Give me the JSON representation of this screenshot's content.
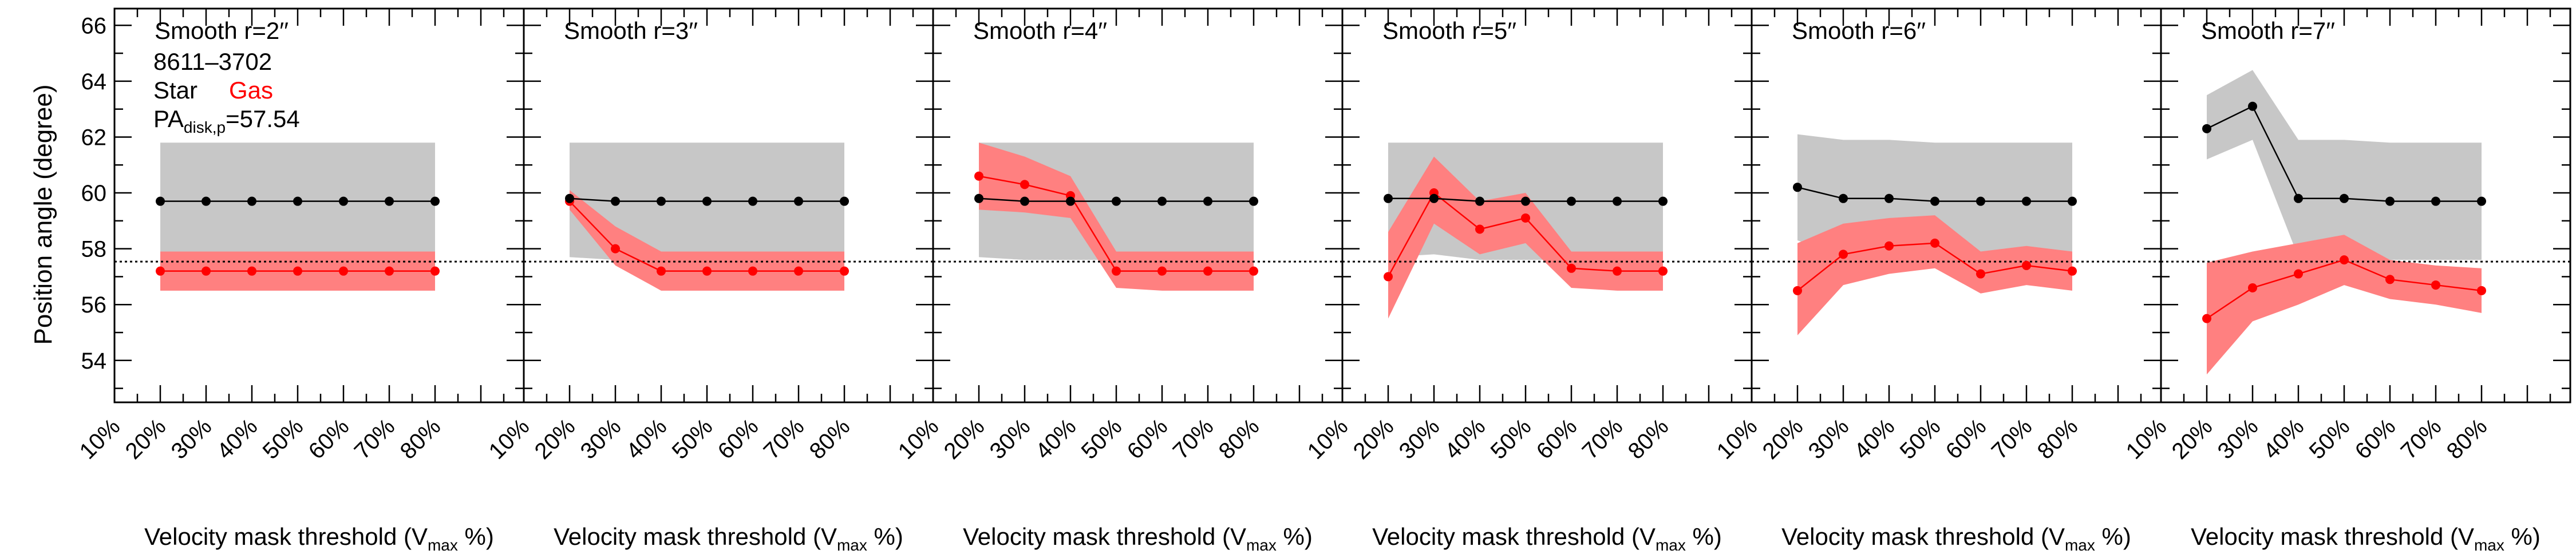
{
  "figure": {
    "ylabel": "Position angle (degree)",
    "xlabel_main": "Velocity mask threshold (V",
    "xlabel_sub": "max",
    "xlabel_tail": " %)",
    "pa_disk": 57.54
  },
  "legend": {
    "galaxy": "8611–3702",
    "star_label": "Star",
    "gas_label": "Gas",
    "pa_main": "PA",
    "pa_sub": "disk,p",
    "pa_value": "=57.54"
  },
  "colors": {
    "star": "#000000",
    "star_band": "#c7c7c7",
    "gas": "#ff0000",
    "gas_band": "#ff8080"
  },
  "chart_data": [
    {
      "type": "line",
      "title": "Smooth r=2′′",
      "x_categories": [
        "10%",
        "20%",
        "30%",
        "40%",
        "50%",
        "60%",
        "70%",
        "80%"
      ],
      "x": [
        "20%",
        "30%",
        "40%",
        "50%",
        "60%",
        "70%",
        "80%"
      ],
      "ylabel": "Position angle (degree)",
      "ylim": [
        52.5,
        66.6
      ],
      "yticks": [
        54,
        56,
        58,
        60,
        62,
        64,
        66
      ],
      "series": [
        {
          "name": "Star",
          "values": [
            59.7,
            59.7,
            59.7,
            59.7,
            59.7,
            59.7,
            59.7
          ],
          "lower": [
            57.6,
            57.6,
            57.6,
            57.6,
            57.6,
            57.6,
            57.6
          ],
          "upper": [
            61.8,
            61.8,
            61.8,
            61.8,
            61.8,
            61.8,
            61.8
          ]
        },
        {
          "name": "Gas",
          "values": [
            57.2,
            57.2,
            57.2,
            57.2,
            57.2,
            57.2,
            57.2
          ],
          "lower": [
            56.5,
            56.5,
            56.5,
            56.5,
            56.5,
            56.5,
            56.5
          ],
          "upper": [
            57.9,
            57.9,
            57.9,
            57.9,
            57.9,
            57.9,
            57.9
          ]
        }
      ],
      "reference_line": 57.54
    },
    {
      "type": "line",
      "title": "Smooth r=3′′",
      "x_categories": [
        "10%",
        "20%",
        "30%",
        "40%",
        "50%",
        "60%",
        "70%",
        "80%"
      ],
      "x": [
        "20%",
        "30%",
        "40%",
        "50%",
        "60%",
        "70%",
        "80%"
      ],
      "ylim": [
        52.5,
        66.6
      ],
      "series": [
        {
          "name": "Star",
          "values": [
            59.8,
            59.7,
            59.7,
            59.7,
            59.7,
            59.7,
            59.7
          ],
          "lower": [
            57.7,
            57.6,
            57.6,
            57.6,
            57.6,
            57.6,
            57.6
          ],
          "upper": [
            61.8,
            61.8,
            61.8,
            61.8,
            61.8,
            61.8,
            61.8
          ]
        },
        {
          "name": "Gas",
          "values": [
            59.7,
            58.0,
            57.2,
            57.2,
            57.2,
            57.2,
            57.2
          ],
          "lower": [
            59.4,
            57.4,
            56.5,
            56.5,
            56.5,
            56.5,
            56.5
          ],
          "upper": [
            60.1,
            58.8,
            57.9,
            57.9,
            57.9,
            57.9,
            57.9
          ]
        }
      ],
      "reference_line": 57.54
    },
    {
      "type": "line",
      "title": "Smooth r=4′′",
      "x_categories": [
        "10%",
        "20%",
        "30%",
        "40%",
        "50%",
        "60%",
        "70%",
        "80%"
      ],
      "x": [
        "20%",
        "30%",
        "40%",
        "50%",
        "60%",
        "70%",
        "80%"
      ],
      "ylim": [
        52.5,
        66.6
      ],
      "series": [
        {
          "name": "Star",
          "values": [
            59.8,
            59.7,
            59.7,
            59.7,
            59.7,
            59.7,
            59.7
          ],
          "lower": [
            57.7,
            57.6,
            57.6,
            57.6,
            57.6,
            57.6,
            57.6
          ],
          "upper": [
            61.8,
            61.8,
            61.8,
            61.8,
            61.8,
            61.8,
            61.8
          ]
        },
        {
          "name": "Gas",
          "values": [
            60.6,
            60.3,
            59.9,
            57.2,
            57.2,
            57.2,
            57.2
          ],
          "lower": [
            59.4,
            59.3,
            59.1,
            56.6,
            56.5,
            56.5,
            56.5
          ],
          "upper": [
            61.8,
            61.3,
            60.6,
            57.9,
            57.9,
            57.9,
            57.9
          ]
        }
      ],
      "reference_line": 57.54
    },
    {
      "type": "line",
      "title": "Smooth r=5′′",
      "x_categories": [
        "10%",
        "20%",
        "30%",
        "40%",
        "50%",
        "60%",
        "70%",
        "80%"
      ],
      "x": [
        "20%",
        "30%",
        "40%",
        "50%",
        "60%",
        "70%",
        "80%"
      ],
      "ylim": [
        52.5,
        66.6
      ],
      "series": [
        {
          "name": "Star",
          "values": [
            59.8,
            59.8,
            59.7,
            59.7,
            59.7,
            59.7,
            59.7
          ],
          "lower": [
            57.7,
            57.8,
            57.6,
            57.6,
            57.6,
            57.6,
            57.6
          ],
          "upper": [
            61.8,
            61.8,
            61.8,
            61.8,
            61.8,
            61.8,
            61.8
          ]
        },
        {
          "name": "Gas",
          "values": [
            57.0,
            60.0,
            58.7,
            59.1,
            57.3,
            57.2,
            57.2
          ],
          "lower": [
            55.5,
            58.9,
            57.8,
            58.2,
            56.6,
            56.5,
            56.5
          ],
          "upper": [
            58.6,
            61.3,
            59.7,
            60.0,
            57.9,
            57.9,
            57.9
          ]
        }
      ],
      "reference_line": 57.54
    },
    {
      "type": "line",
      "title": "Smooth r=6′′",
      "x_categories": [
        "10%",
        "20%",
        "30%",
        "40%",
        "50%",
        "60%",
        "70%",
        "80%"
      ],
      "x": [
        "20%",
        "30%",
        "40%",
        "50%",
        "60%",
        "70%",
        "80%"
      ],
      "ylim": [
        52.5,
        66.6
      ],
      "series": [
        {
          "name": "Star",
          "values": [
            60.2,
            59.8,
            59.8,
            59.7,
            59.7,
            59.7,
            59.7
          ],
          "lower": [
            58.3,
            57.7,
            57.7,
            57.6,
            57.6,
            57.6,
            57.6
          ],
          "upper": [
            62.1,
            61.9,
            61.9,
            61.8,
            61.8,
            61.8,
            61.8
          ]
        },
        {
          "name": "Gas",
          "values": [
            56.5,
            57.8,
            58.1,
            58.2,
            57.1,
            57.4,
            57.2
          ],
          "lower": [
            54.9,
            56.7,
            57.1,
            57.3,
            56.4,
            56.7,
            56.5
          ],
          "upper": [
            58.2,
            58.9,
            59.1,
            59.2,
            57.9,
            58.1,
            57.9
          ]
        }
      ],
      "reference_line": 57.54
    },
    {
      "type": "line",
      "title": "Smooth r=7′′",
      "x_categories": [
        "10%",
        "20%",
        "30%",
        "40%",
        "50%",
        "60%",
        "70%",
        "80%"
      ],
      "x": [
        "20%",
        "30%",
        "40%",
        "50%",
        "60%",
        "70%",
        "80%"
      ],
      "ylim": [
        52.5,
        66.6
      ],
      "series": [
        {
          "name": "Star",
          "values": [
            62.3,
            63.1,
            59.8,
            59.8,
            59.7,
            59.7,
            59.7
          ],
          "lower": [
            61.2,
            61.9,
            57.7,
            57.7,
            57.6,
            57.6,
            57.6
          ],
          "upper": [
            63.5,
            64.4,
            61.9,
            61.9,
            61.8,
            61.8,
            61.8
          ]
        },
        {
          "name": "Gas",
          "values": [
            55.5,
            56.6,
            57.1,
            57.6,
            56.9,
            56.7,
            56.5
          ],
          "lower": [
            53.5,
            55.4,
            56.0,
            56.7,
            56.2,
            56.0,
            55.7
          ],
          "upper": [
            57.5,
            57.9,
            58.2,
            58.5,
            57.6,
            57.4,
            57.3
          ]
        }
      ],
      "reference_line": 57.54
    }
  ]
}
